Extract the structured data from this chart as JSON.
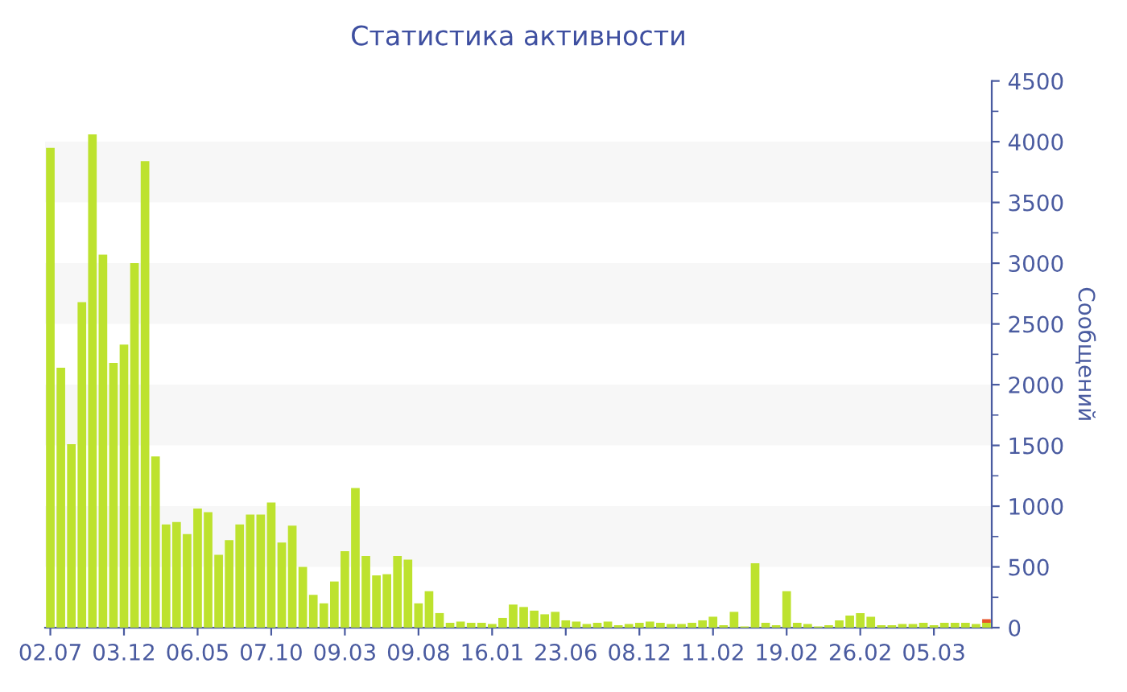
{
  "chart_data": {
    "type": "bar",
    "title": "Статистика активности",
    "ylabel": "Сообщений",
    "categories": [
      "02.07",
      null,
      null,
      null,
      null,
      null,
      null,
      "03.12",
      null,
      null,
      null,
      null,
      null,
      null,
      "06.05",
      null,
      null,
      null,
      null,
      null,
      null,
      "07.10",
      null,
      null,
      null,
      null,
      null,
      null,
      "09.03",
      null,
      null,
      null,
      null,
      null,
      null,
      "09.08",
      null,
      null,
      null,
      null,
      null,
      null,
      "16.01",
      null,
      null,
      null,
      null,
      null,
      null,
      "23.06",
      null,
      null,
      null,
      null,
      null,
      null,
      "08.12",
      null,
      null,
      null,
      null,
      null,
      null,
      "11.02",
      null,
      null,
      null,
      null,
      null,
      null,
      "19.02",
      null,
      null,
      null,
      null,
      null,
      null,
      "26.02",
      null,
      null,
      null,
      null,
      null,
      null,
      "05.03",
      null,
      null,
      null,
      null,
      null
    ],
    "stacked": true,
    "series": [
      {
        "color": "#bde22e",
        "values": [
          3950,
          2140,
          1510,
          2680,
          4060,
          3070,
          2180,
          2330,
          3000,
          3840,
          1410,
          850,
          870,
          770,
          980,
          950,
          600,
          720,
          850,
          930,
          930,
          1030,
          700,
          840,
          500,
          270,
          200,
          380,
          630,
          1150,
          590,
          430,
          440,
          590,
          560,
          200,
          300,
          120,
          40,
          50,
          40,
          40,
          30,
          80,
          190,
          170,
          140,
          110,
          130,
          60,
          50,
          30,
          40,
          50,
          20,
          30,
          40,
          50,
          40,
          30,
          30,
          40,
          60,
          90,
          20,
          130,
          10,
          530,
          40,
          20,
          300,
          40,
          30,
          10,
          20,
          60,
          100,
          120,
          90,
          20,
          20,
          30,
          30,
          40,
          20,
          40,
          40,
          40,
          30,
          40
        ]
      },
      {
        "color": "#e8552a",
        "values": [
          null,
          null,
          null,
          null,
          null,
          null,
          null,
          null,
          null,
          null,
          null,
          null,
          null,
          null,
          null,
          null,
          null,
          null,
          null,
          null,
          null,
          null,
          null,
          null,
          null,
          null,
          null,
          null,
          null,
          null,
          null,
          null,
          null,
          null,
          null,
          null,
          null,
          null,
          null,
          null,
          null,
          null,
          null,
          null,
          null,
          null,
          null,
          null,
          null,
          null,
          null,
          null,
          null,
          null,
          null,
          null,
          null,
          null,
          null,
          null,
          null,
          null,
          null,
          null,
          null,
          null,
          null,
          null,
          null,
          null,
          null,
          null,
          null,
          null,
          null,
          null,
          null,
          null,
          null,
          null,
          null,
          null,
          null,
          null,
          null,
          null,
          null,
          null,
          null,
          30
        ]
      }
    ],
    "ylim": [
      0,
      4500
    ],
    "yticks": [
      0,
      500,
      1000,
      1500,
      2000,
      2500,
      3000,
      3500,
      4000,
      4500
    ],
    "bands": [
      {
        "axis": "y",
        "from": 500,
        "to": 1000,
        "color": "#f7f7f7"
      },
      {
        "axis": "y",
        "from": 1500,
        "to": 2000,
        "color": "#f7f7f7"
      },
      {
        "axis": "y",
        "from": 2500,
        "to": 3000,
        "color": "#f7f7f7"
      },
      {
        "axis": "y",
        "from": 3500,
        "to": 4000,
        "color": "#f7f7f7"
      }
    ]
  }
}
